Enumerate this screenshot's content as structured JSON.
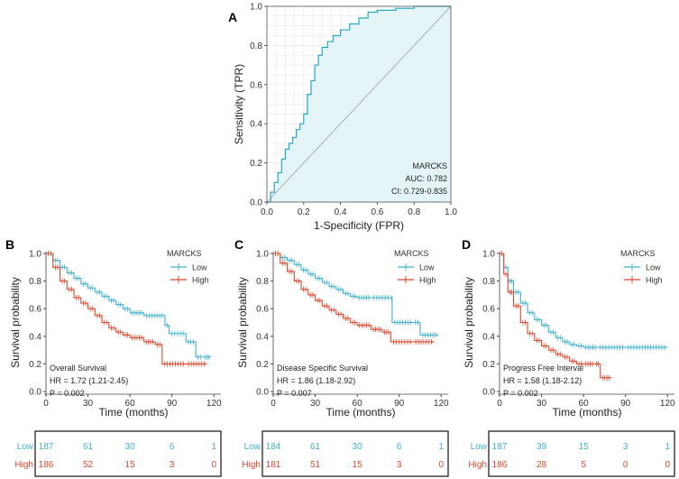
{
  "colors": {
    "low": "#3fb1cf",
    "high": "#e0452b",
    "roc_fill": "#e4f4f7",
    "roc_line": "#23a9c6",
    "diag": "#b0b0b0",
    "grid": "#e6e6e6"
  },
  "chart_data": [
    {
      "panel": "A",
      "type": "line",
      "title": "",
      "xlabel": "1-Specificity (FPR)",
      "ylabel": "Sensitivity (TPR)",
      "xlim": [
        0,
        1
      ],
      "ylim": [
        0,
        1
      ],
      "xticks": [
        "0.0",
        "0.2",
        "0.4",
        "0.6",
        "0.8",
        "1.0"
      ],
      "yticks": [
        "0.0",
        "0.2",
        "0.4",
        "0.6",
        "0.8",
        "1.0"
      ],
      "legend": [
        "MARCKS",
        "AUC: 0.782",
        "CI: 0.729-0.835"
      ],
      "series": [
        {
          "name": "ROC",
          "points": [
            [
              0,
              0
            ],
            [
              0.02,
              0.05
            ],
            [
              0.04,
              0.1
            ],
            [
              0.06,
              0.15
            ],
            [
              0.08,
              0.22
            ],
            [
              0.1,
              0.27
            ],
            [
              0.12,
              0.3
            ],
            [
              0.14,
              0.33
            ],
            [
              0.16,
              0.37
            ],
            [
              0.18,
              0.4
            ],
            [
              0.2,
              0.45
            ],
            [
              0.22,
              0.55
            ],
            [
              0.24,
              0.62
            ],
            [
              0.26,
              0.7
            ],
            [
              0.28,
              0.75
            ],
            [
              0.3,
              0.79
            ],
            [
              0.33,
              0.82
            ],
            [
              0.36,
              0.85
            ],
            [
              0.4,
              0.88
            ],
            [
              0.45,
              0.91
            ],
            [
              0.5,
              0.94
            ],
            [
              0.55,
              0.97
            ],
            [
              0.6,
              0.98
            ],
            [
              0.7,
              0.99
            ],
            [
              0.8,
              1.0
            ],
            [
              1.0,
              1.0
            ]
          ]
        },
        {
          "name": "Reference",
          "points": [
            [
              0,
              0
            ],
            [
              1,
              1
            ]
          ]
        }
      ]
    },
    {
      "panel": "B",
      "type": "line",
      "annotation": "Overall Survival",
      "hr": "HR = 1.72 (1.21-2.45)",
      "p": "P = 0.002",
      "xlabel": "Time (months)",
      "ylabel": "Survival probability",
      "xlim": [
        0,
        125
      ],
      "ylim": [
        0,
        1
      ],
      "xticks": [
        "0",
        "30",
        "60",
        "90",
        "120"
      ],
      "yticks": [
        "0.0",
        "0.2",
        "0.4",
        "0.6",
        "0.8",
        "1.0"
      ],
      "legend_title": "MARCKS",
      "legend": [
        "Low",
        "High"
      ],
      "series": [
        {
          "name": "Low",
          "points": [
            [
              0,
              1.0
            ],
            [
              5,
              0.95
            ],
            [
              10,
              0.9
            ],
            [
              15,
              0.86
            ],
            [
              20,
              0.82
            ],
            [
              25,
              0.78
            ],
            [
              30,
              0.75
            ],
            [
              35,
              0.72
            ],
            [
              40,
              0.69
            ],
            [
              45,
              0.66
            ],
            [
              50,
              0.63
            ],
            [
              55,
              0.6
            ],
            [
              60,
              0.57
            ],
            [
              70,
              0.55
            ],
            [
              85,
              0.48
            ],
            [
              88,
              0.42
            ],
            [
              100,
              0.36
            ],
            [
              107,
              0.25
            ],
            [
              112,
              0.25
            ],
            [
              118,
              0.25
            ]
          ]
        },
        {
          "name": "High",
          "points": [
            [
              0,
              1.0
            ],
            [
              5,
              0.9
            ],
            [
              10,
              0.8
            ],
            [
              15,
              0.74
            ],
            [
              20,
              0.68
            ],
            [
              25,
              0.64
            ],
            [
              30,
              0.6
            ],
            [
              35,
              0.55
            ],
            [
              40,
              0.5
            ],
            [
              45,
              0.46
            ],
            [
              50,
              0.43
            ],
            [
              55,
              0.41
            ],
            [
              60,
              0.39
            ],
            [
              70,
              0.36
            ],
            [
              78,
              0.34
            ],
            [
              83,
              0.2
            ],
            [
              100,
              0.2
            ],
            [
              115,
              0.2
            ]
          ]
        }
      ],
      "risk_table": {
        "rows": [
          "Low",
          "High"
        ],
        "times": [
          0,
          30,
          60,
          90,
          120
        ],
        "Low": [
          187,
          61,
          30,
          6,
          1
        ],
        "High": [
          186,
          52,
          15,
          3,
          0
        ]
      }
    },
    {
      "panel": "C",
      "type": "line",
      "annotation": "Disease Specific Survival",
      "hr": "HR = 1.86 (1.18-2.92)",
      "p": "P = 0.007",
      "xlabel": "Time (months)",
      "ylabel": "Survival probability",
      "xlim": [
        0,
        125
      ],
      "ylim": [
        0,
        1
      ],
      "xticks": [
        "0",
        "30",
        "60",
        "90",
        "120"
      ],
      "yticks": [
        "0.0",
        "0.2",
        "0.4",
        "0.6",
        "0.8",
        "1.0"
      ],
      "legend_title": "MARCKS",
      "legend": [
        "Low",
        "High"
      ],
      "series": [
        {
          "name": "Low",
          "points": [
            [
              0,
              1.0
            ],
            [
              5,
              0.97
            ],
            [
              10,
              0.95
            ],
            [
              15,
              0.92
            ],
            [
              20,
              0.88
            ],
            [
              25,
              0.85
            ],
            [
              30,
              0.82
            ],
            [
              35,
              0.79
            ],
            [
              40,
              0.76
            ],
            [
              45,
              0.74
            ],
            [
              50,
              0.71
            ],
            [
              55,
              0.69
            ],
            [
              60,
              0.68
            ],
            [
              70,
              0.68
            ],
            [
              84,
              0.68
            ],
            [
              85,
              0.5
            ],
            [
              100,
              0.5
            ],
            [
              105,
              0.41
            ],
            [
              118,
              0.41
            ]
          ]
        },
        {
          "name": "High",
          "points": [
            [
              0,
              1.0
            ],
            [
              5,
              0.93
            ],
            [
              10,
              0.87
            ],
            [
              15,
              0.8
            ],
            [
              20,
              0.74
            ],
            [
              25,
              0.7
            ],
            [
              30,
              0.66
            ],
            [
              35,
              0.62
            ],
            [
              40,
              0.59
            ],
            [
              45,
              0.56
            ],
            [
              50,
              0.53
            ],
            [
              55,
              0.5
            ],
            [
              60,
              0.48
            ],
            [
              70,
              0.45
            ],
            [
              78,
              0.43
            ],
            [
              84,
              0.36
            ],
            [
              100,
              0.36
            ],
            [
              115,
              0.36
            ]
          ]
        }
      ],
      "risk_table": {
        "rows": [
          "Low",
          "High"
        ],
        "times": [
          0,
          30,
          60,
          90,
          120
        ],
        "Low": [
          184,
          61,
          30,
          6,
          1
        ],
        "High": [
          181,
          51,
          15,
          3,
          0
        ]
      }
    },
    {
      "panel": "D",
      "type": "line",
      "annotation": "Progress Free Interval",
      "hr": "HR = 1.58 (1.18-2.12)",
      "p": "P = 0.002",
      "xlabel": "Time (months)",
      "ylabel": "Survival probability",
      "xlim": [
        0,
        125
      ],
      "ylim": [
        0,
        1
      ],
      "xticks": [
        "0",
        "30",
        "60",
        "90",
        "120"
      ],
      "yticks": [
        "0.0",
        "0.2",
        "0.4",
        "0.6",
        "0.8",
        "1.0"
      ],
      "legend_title": "MARCKS",
      "legend": [
        "Low",
        "High"
      ],
      "series": [
        {
          "name": "Low",
          "points": [
            [
              0,
              1.0
            ],
            [
              3,
              0.9
            ],
            [
              6,
              0.8
            ],
            [
              10,
              0.72
            ],
            [
              15,
              0.64
            ],
            [
              20,
              0.57
            ],
            [
              25,
              0.52
            ],
            [
              30,
              0.48
            ],
            [
              35,
              0.43
            ],
            [
              40,
              0.39
            ],
            [
              45,
              0.36
            ],
            [
              50,
              0.34
            ],
            [
              55,
              0.33
            ],
            [
              60,
              0.32
            ],
            [
              70,
              0.32
            ],
            [
              90,
              0.32
            ],
            [
              120,
              0.32
            ]
          ]
        },
        {
          "name": "High",
          "points": [
            [
              0,
              1.0
            ],
            [
              3,
              0.85
            ],
            [
              6,
              0.72
            ],
            [
              10,
              0.62
            ],
            [
              15,
              0.5
            ],
            [
              20,
              0.42
            ],
            [
              25,
              0.37
            ],
            [
              30,
              0.33
            ],
            [
              35,
              0.3
            ],
            [
              40,
              0.27
            ],
            [
              45,
              0.25
            ],
            [
              50,
              0.22
            ],
            [
              55,
              0.2
            ],
            [
              60,
              0.2
            ],
            [
              68,
              0.2
            ],
            [
              72,
              0.1
            ],
            [
              80,
              0.1
            ]
          ]
        }
      ],
      "risk_table": {
        "rows": [
          "Low",
          "High"
        ],
        "times": [
          0,
          30,
          60,
          90,
          120
        ],
        "Low": [
          187,
          39,
          15,
          3,
          1
        ],
        "High": [
          186,
          28,
          5,
          0,
          0
        ]
      }
    }
  ]
}
